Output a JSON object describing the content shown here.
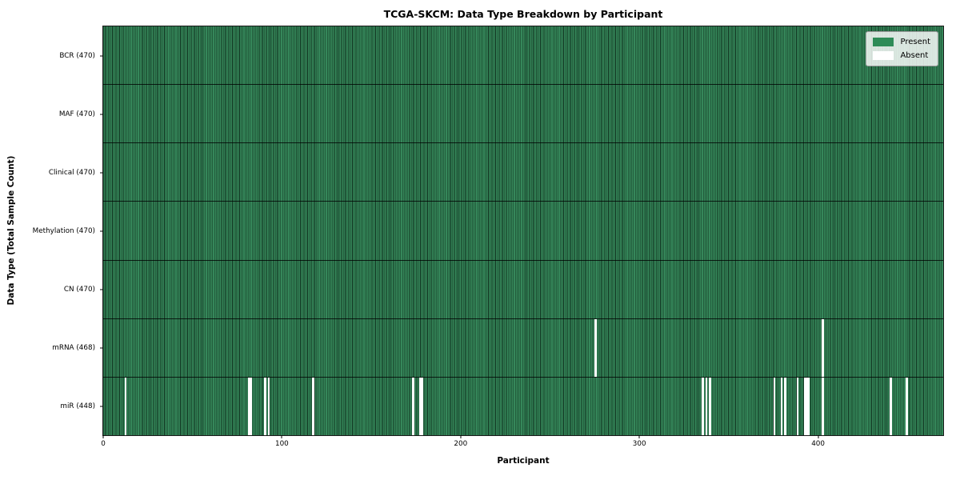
{
  "figure": {
    "title": "TCGA-SKCM: Data Type Breakdown by Participant",
    "xlabel": "Participant",
    "ylabel": "Data Type (Total Sample Count)"
  },
  "legend": {
    "position": "upper-right",
    "items": [
      {
        "label": "Present",
        "color": "#2e8b57"
      },
      {
        "label": "Absent",
        "color": "#ffffff"
      }
    ]
  },
  "chart_data": {
    "type": "heatmap",
    "title": "TCGA-SKCM: Data Type Breakdown by Participant",
    "xlabel": "Participant",
    "ylabel": "Data Type (Total Sample Count)",
    "n_participants": 470,
    "x_ticks": [
      0,
      100,
      200,
      300,
      400
    ],
    "colors": {
      "present": "#2e8b57",
      "absent": "#ffffff",
      "cell_edge": "#0a2012",
      "row_divider": "#1a1a1a"
    },
    "grid": false,
    "legend_entries": [
      "Present",
      "Absent"
    ],
    "rows": [
      {
        "label": "BCR (470)",
        "data_type": "BCR",
        "present_count": 470,
        "absent_participants": []
      },
      {
        "label": "MAF (470)",
        "data_type": "MAF",
        "present_count": 470,
        "absent_participants": []
      },
      {
        "label": "Clinical (470)",
        "data_type": "Clinical",
        "present_count": 470,
        "absent_participants": []
      },
      {
        "label": "Methylation (470)",
        "data_type": "Methylation",
        "present_count": 470,
        "absent_participants": []
      },
      {
        "label": "CN (470)",
        "data_type": "CN",
        "present_count": 470,
        "absent_participants": []
      },
      {
        "label": "mRNA (468)",
        "data_type": "mRNA",
        "present_count": 468,
        "absent_participants": [
          275,
          402
        ]
      },
      {
        "label": "miR (448)",
        "data_type": "miR",
        "present_count": 448,
        "absent_participants": [
          12,
          81,
          82,
          90,
          92,
          117,
          173,
          177,
          178,
          335,
          337,
          339,
          375,
          379,
          381,
          388,
          392,
          393,
          394,
          402,
          440,
          449
        ]
      }
    ]
  }
}
